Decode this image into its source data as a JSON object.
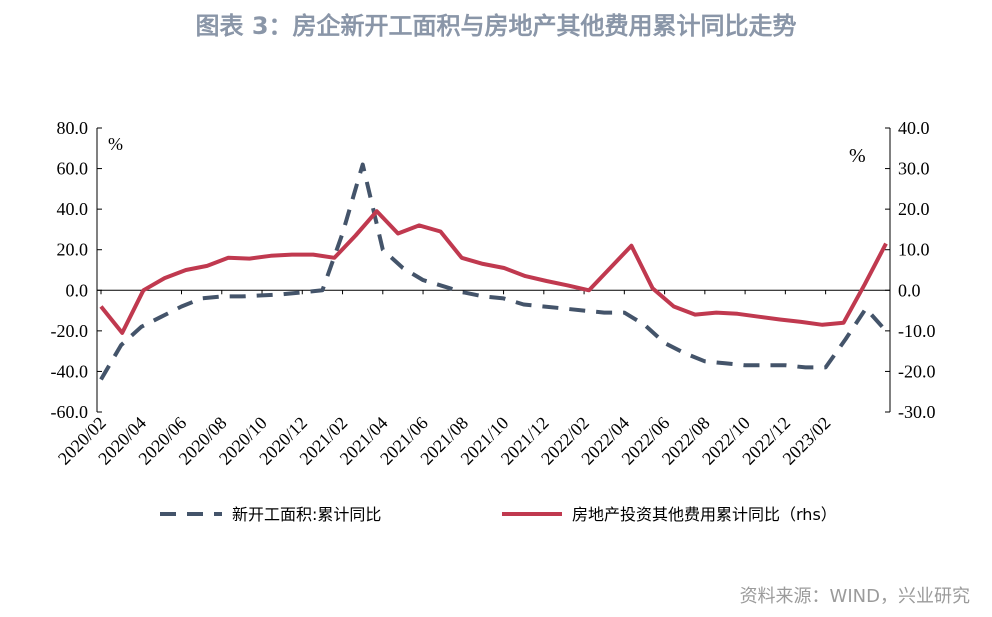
{
  "title": "图表 3：房企新开工面积与房地产其他费用累计同比走势",
  "source": "资料来源：WIND，兴业研究",
  "chart_data": {
    "type": "line",
    "left_unit": "%",
    "right_unit": "%",
    "y_left": {
      "range": [
        -60,
        80
      ],
      "ticks": [
        "80.0",
        "60.0",
        "40.0",
        "20.0",
        "0.0",
        "-20.0",
        "-40.0",
        "-60.0"
      ]
    },
    "y_right": {
      "range": [
        -30,
        40
      ],
      "ticks": [
        "40.0",
        "30.0",
        "20.0",
        "10.0",
        "0.0",
        "-10.0",
        "-20.0",
        "-30.0"
      ]
    },
    "x_labels": [
      "2020/02",
      "2020/04",
      "2020/06",
      "2020/08",
      "2020/10",
      "2020/12",
      "2021/02",
      "2021/04",
      "2021/06",
      "2021/08",
      "2021/10",
      "2021/12",
      "2022/02",
      "2022/04",
      "2022/06",
      "2022/08",
      "2022/10",
      "2022/12",
      "2023/02"
    ],
    "series": [
      {
        "name": "新开工面积:累计同比",
        "axis": "left",
        "color": "#44546a",
        "style": "dashed",
        "values": [
          -44,
          -27,
          -18,
          -13,
          -8,
          -4,
          -3,
          -3,
          -2.5,
          -2,
          -1,
          0,
          28,
          62,
          20,
          11,
          5,
          2,
          -1,
          -3,
          -4,
          -7,
          -8,
          -9,
          -10,
          -11,
          -11,
          -17,
          -26,
          -31,
          -35,
          -36,
          -37,
          -37,
          -37,
          -38,
          -38,
          -24,
          -9,
          -20
        ]
      },
      {
        "name": "房地产投资其他费用累计同比（rhs）",
        "axis": "right",
        "color": "#c0394f",
        "style": "solid",
        "values": [
          -4,
          -10.5,
          0,
          3,
          5,
          6,
          8,
          7.8,
          8.5,
          8.8,
          8.8,
          8,
          13.5,
          19.5,
          14,
          16,
          14.5,
          8,
          6.5,
          5.5,
          3.5,
          2.3,
          1.2,
          0,
          5.5,
          11,
          0.5,
          -4,
          -6,
          -5.5,
          -5.8,
          -6.5,
          -7.2,
          -7.8,
          -8.5,
          -8,
          1.5,
          11.5
        ]
      }
    ]
  }
}
